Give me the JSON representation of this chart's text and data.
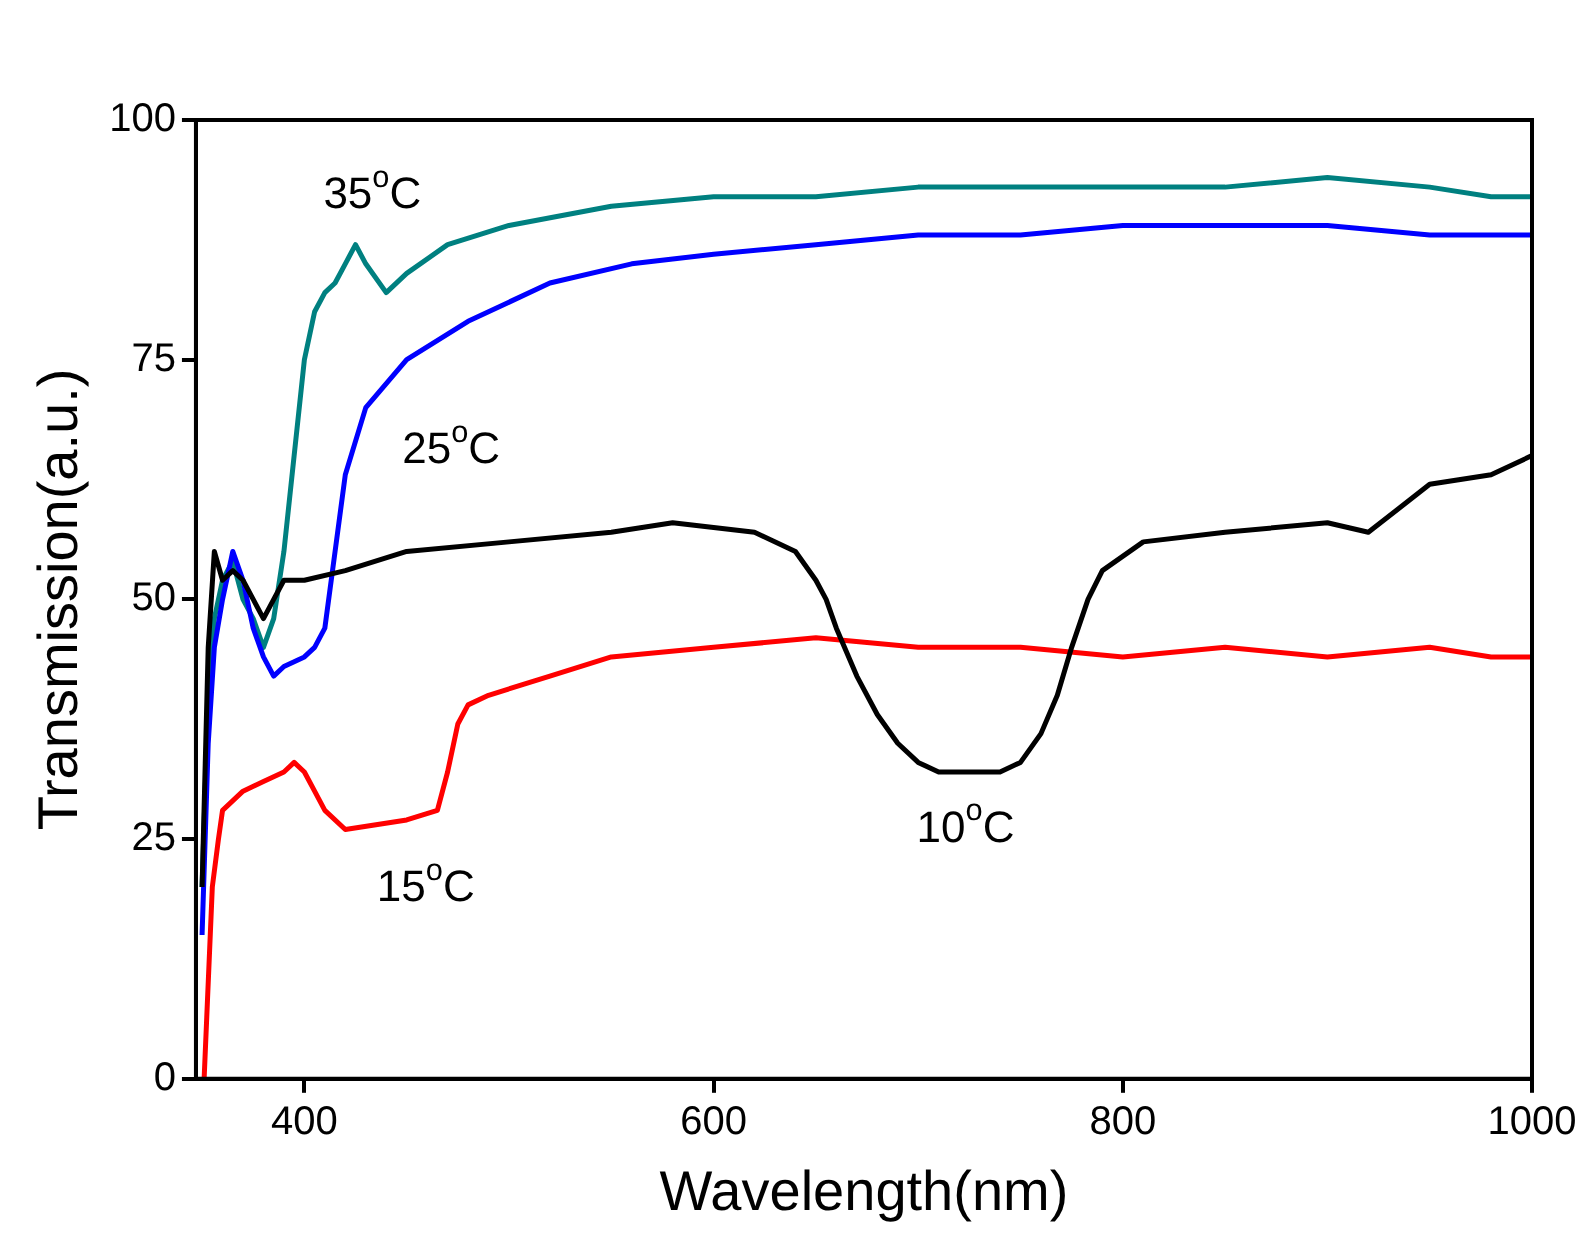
{
  "chart_data": {
    "type": "line",
    "xlabel": "Wavelength(nm)",
    "ylabel": "Transmission(a.u.)",
    "xlim": [
      347,
      1000
    ],
    "xticks": [
      400,
      600,
      800,
      1000
    ],
    "ylim": [
      0,
      100
    ],
    "yticks": [
      0,
      25,
      50,
      75,
      100
    ],
    "grid": false,
    "legend": false,
    "marker": "none",
    "line_style": "solid",
    "series": [
      {
        "name": "10$^{o}$C",
        "color": "#000000",
        "x": [
          350,
          353,
          356,
          360,
          365,
          370,
          375,
          380,
          385,
          390,
          400,
          420,
          450,
          500,
          550,
          580,
          620,
          640,
          650,
          655,
          660,
          670,
          680,
          690,
          700,
          710,
          740,
          750,
          760,
          768,
          775,
          783,
          790,
          810,
          850,
          900,
          920,
          950,
          980,
          1000
        ],
        "values": [
          20,
          45,
          55,
          52,
          53,
          52,
          50,
          48,
          50,
          52,
          52,
          53,
          55,
          56,
          57,
          58,
          57,
          55,
          52,
          50,
          47,
          42,
          38,
          35,
          33,
          32,
          32,
          33,
          36,
          40,
          45,
          50,
          53,
          56,
          57,
          58,
          57,
          62,
          63,
          65
        ]
      },
      {
        "name": "15$^{o}$C",
        "color": "#ff0000",
        "x": [
          351,
          353,
          355,
          358,
          360,
          370,
          380,
          390,
          395,
          400,
          405,
          410,
          420,
          450,
          465,
          470,
          475,
          480,
          490,
          520,
          550,
          600,
          650,
          700,
          750,
          800,
          850,
          900,
          950,
          980,
          1000
        ],
        "values": [
          0,
          10,
          20,
          25,
          28,
          30,
          31,
          32,
          33,
          32,
          30,
          28,
          26,
          27,
          28,
          32,
          37,
          39,
          40,
          42,
          44,
          45,
          46,
          45,
          45,
          44,
          45,
          44,
          45,
          44,
          44
        ]
      },
      {
        "name": "25$^{o}$C",
        "color": "#0000ff",
        "x": [
          350,
          353,
          356,
          360,
          365,
          370,
          375,
          380,
          385,
          390,
          400,
          405,
          410,
          415,
          420,
          430,
          450,
          480,
          520,
          560,
          600,
          650,
          700,
          750,
          800,
          850,
          900,
          950,
          970,
          1000
        ],
        "values": [
          15,
          35,
          45,
          50,
          55,
          52,
          47,
          44,
          42,
          43,
          44,
          45,
          47,
          55,
          63,
          70,
          75,
          79,
          83,
          85,
          86,
          87,
          88,
          88,
          89,
          89,
          89,
          88,
          88,
          88
        ]
      },
      {
        "name": "35$^{o}$C",
        "color": "#008080",
        "x": [
          350,
          353,
          356,
          360,
          365,
          370,
          375,
          380,
          385,
          390,
          395,
          400,
          405,
          410,
          415,
          420,
          425,
          430,
          440,
          450,
          470,
          500,
          550,
          600,
          650,
          700,
          750,
          800,
          850,
          900,
          950,
          980,
          1000
        ],
        "values": [
          20,
          40,
          48,
          52,
          54,
          50,
          48,
          45,
          48,
          55,
          65,
          75,
          80,
          82,
          83,
          85,
          87,
          85,
          82,
          84,
          87,
          89,
          91,
          92,
          92,
          93,
          93,
          93,
          93,
          94,
          93,
          92,
          92
        ]
      }
    ]
  }
}
